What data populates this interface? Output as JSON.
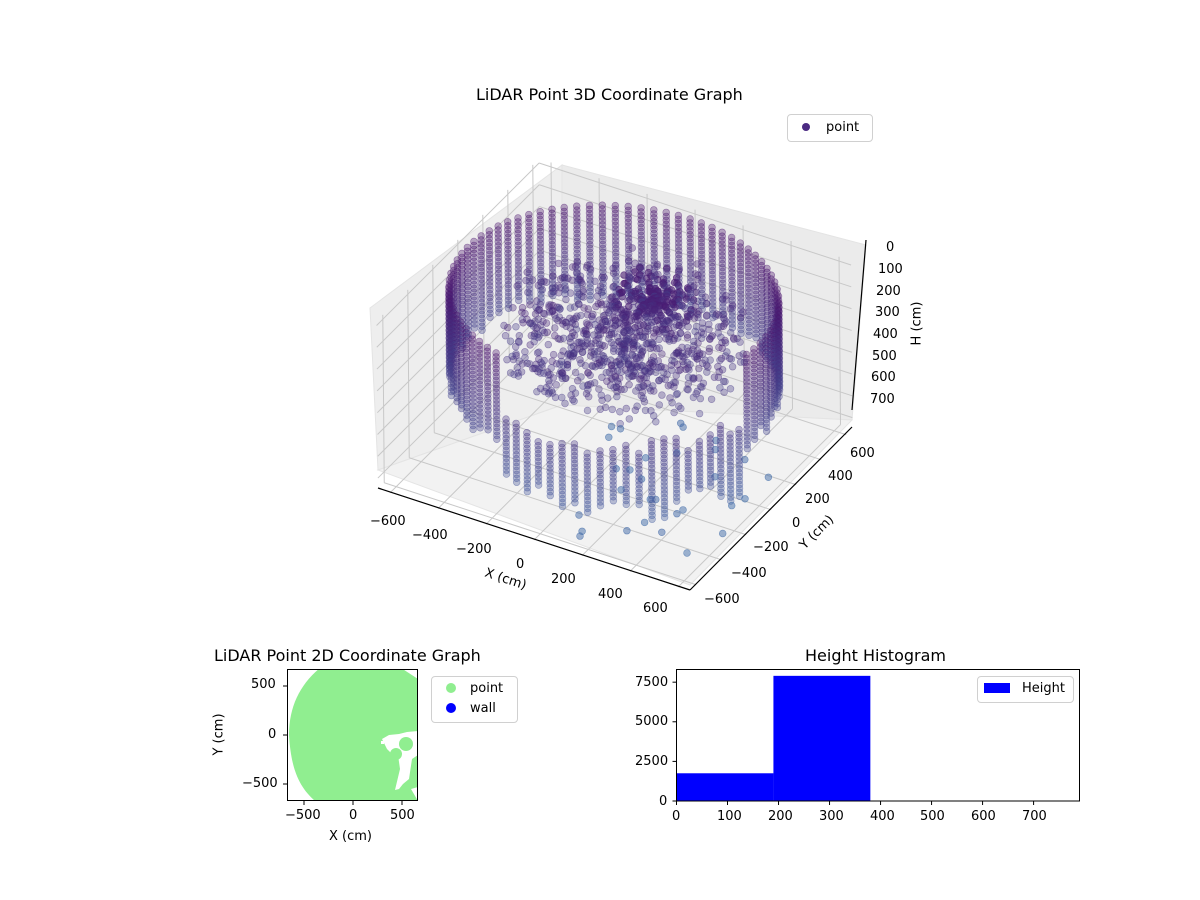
{
  "chart_data": [
    {
      "type": "scatter",
      "projection": "3d",
      "title": "LiDAR Point 3D Coordinate Graph",
      "xlabel": "X (cm)",
      "ylabel": "Y (cm)",
      "zlabel": "H (cm)",
      "x_ticks": [
        "−600",
        "−400",
        "−200",
        "0",
        "200",
        "400",
        "600"
      ],
      "y_ticks": [
        "−600",
        "−400",
        "−200",
        "0",
        "200",
        "400",
        "600"
      ],
      "z_ticks": [
        "0",
        "100",
        "200",
        "300",
        "400",
        "500",
        "600",
        "700"
      ],
      "xlim": [
        -650,
        650
      ],
      "ylim": [
        -650,
        650
      ],
      "zlim": [
        750,
        0
      ],
      "z_axis_inverted": true,
      "legend": [
        {
          "label": "point",
          "color": "#4b2a82"
        }
      ],
      "legend_position": "upper right",
      "description": "Ring/cylindrical wall of points at radius ~600 cm spanning heights ~0-400 cm, with central cluster of denser points; sparse outliers near H 700",
      "grid": true,
      "colormap": "viridis-purple"
    },
    {
      "type": "scatter",
      "title": "LiDAR Point 2D Coordinate Graph",
      "xlabel": "X (cm)",
      "ylabel": "Y (cm)",
      "x_ticks": [
        "−500",
        "0",
        "500"
      ],
      "y_ticks": [
        "−500",
        "0",
        "500"
      ],
      "xlim": [
        -670,
        670
      ],
      "ylim": [
        -670,
        670
      ],
      "legend": [
        {
          "label": "point",
          "color": "#90ee90"
        },
        {
          "label": "wall",
          "color": "#0000ff"
        }
      ],
      "legend_position": "outside right",
      "description": "Filled disk of light-green points radius ~620 cm centered near origin, with small white gap region around x 350-650, y -500..0"
    },
    {
      "type": "bar",
      "subtype": "histogram",
      "title": "Height Histogram",
      "xlabel": "",
      "ylabel": "",
      "bins": [
        0,
        190,
        380,
        570,
        760
      ],
      "values": [
        1750,
        7900,
        0,
        0
      ],
      "x_ticks": [
        "0",
        "100",
        "200",
        "300",
        "400",
        "500",
        "600",
        "700"
      ],
      "y_ticks": [
        "0",
        "2500",
        "5000",
        "7500"
      ],
      "xlim": [
        0,
        790
      ],
      "ylim": [
        0,
        8300
      ],
      "legend": [
        {
          "label": "Height",
          "color": "#0000ff"
        }
      ],
      "legend_position": "upper right",
      "color": "#0000ff"
    }
  ]
}
